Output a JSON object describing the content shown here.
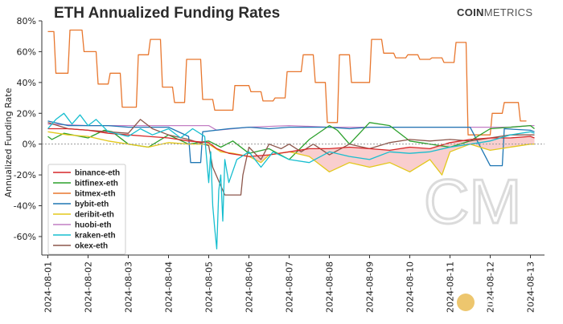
{
  "header": {
    "title": "ETH Annualized Funding Rates",
    "brand_bold": "COIN",
    "brand_light": "METRICS"
  },
  "watermark": {
    "monogram": "CM",
    "text": "金色财经"
  },
  "chart_data": {
    "type": "line",
    "title": "ETH Annualized Funding Rates",
    "ylabel": "Annualized Funding Rate",
    "xlabel": "",
    "ylim": [
      -0.72,
      0.8
    ],
    "yticks": [
      0.8,
      0.6,
      0.4,
      0.2,
      0.0,
      -0.2,
      -0.4,
      -0.6
    ],
    "ytick_labels": [
      "80%",
      "60%",
      "40%",
      "20%",
      "0%",
      "-20%",
      "-40%",
      "-60%"
    ],
    "xlim": [
      -0.15,
      12.35
    ],
    "x_tick_labels": [
      "2024-08-01",
      "2024-08-02",
      "2024-08-03",
      "2024-08-04",
      "2024-08-05",
      "2024-08-06",
      "2024-08-07",
      "2024-08-08",
      "2024-08-09",
      "2024-08-10",
      "2024-08-11",
      "2024-08-12",
      "2024-08-13"
    ],
    "grid": false,
    "legend_position": "bottom-left",
    "zero_line": "dashed",
    "series": [
      {
        "name": "binance-eth",
        "color": "#d62728",
        "points": [
          [
            0,
            0.1
          ],
          [
            0.5,
            0.1
          ],
          [
            1,
            0.09
          ],
          [
            1.5,
            0.07
          ],
          [
            2,
            0.06
          ],
          [
            2.5,
            0.05
          ],
          [
            3,
            0.04
          ],
          [
            3.5,
            0.02
          ],
          [
            4,
            0.01
          ],
          [
            4.2,
            -0.03
          ],
          [
            4.5,
            -0.06
          ],
          [
            5,
            -0.08
          ],
          [
            5.5,
            -0.07
          ],
          [
            6,
            -0.05
          ],
          [
            6.5,
            -0.03
          ],
          [
            7,
            -0.03
          ],
          [
            7.5,
            -0.02
          ],
          [
            8,
            -0.03
          ],
          [
            8.5,
            -0.04
          ],
          [
            9,
            -0.02
          ],
          [
            9.5,
            -0.03
          ],
          [
            10,
            0.01
          ],
          [
            10.5,
            0.03
          ],
          [
            11,
            0.04
          ],
          [
            11.5,
            0.04
          ],
          [
            12,
            0.05
          ],
          [
            12.1,
            0.04
          ]
        ]
      },
      {
        "name": "bitfinex-eth",
        "color": "#2ca02c",
        "points": [
          [
            0,
            0.05
          ],
          [
            0.1,
            0.03
          ],
          [
            0.4,
            0.07
          ],
          [
            1,
            0.04
          ],
          [
            1.4,
            0.09
          ],
          [
            1.6,
            0.08
          ],
          [
            2,
            0.0
          ],
          [
            2.5,
            -0.02
          ],
          [
            3,
            0.06
          ],
          [
            3.5,
            0.0
          ],
          [
            4,
            0.02
          ],
          [
            4.3,
            -0.02
          ],
          [
            4.6,
            0.02
          ],
          [
            5,
            -0.06
          ],
          [
            5.5,
            -0.03
          ],
          [
            6,
            -0.1
          ],
          [
            6.5,
            0.03
          ],
          [
            7,
            0.12
          ],
          [
            7.2,
            0.09
          ],
          [
            7.5,
            0.0
          ],
          [
            8,
            0.14
          ],
          [
            8.5,
            0.12
          ],
          [
            9,
            0.02
          ],
          [
            9.5,
            0.0
          ],
          [
            10,
            -0.02
          ],
          [
            10.5,
            0.02
          ],
          [
            11,
            0.1
          ],
          [
            11.5,
            0.11
          ],
          [
            12,
            0.12
          ],
          [
            12.1,
            0.1
          ]
        ]
      },
      {
        "name": "bitmex-eth",
        "color": "#e8772e",
        "points": [
          [
            0,
            0.73
          ],
          [
            0.15,
            0.73
          ],
          [
            0.2,
            0.46
          ],
          [
            0.5,
            0.46
          ],
          [
            0.55,
            0.74
          ],
          [
            0.85,
            0.74
          ],
          [
            0.9,
            0.6
          ],
          [
            1.2,
            0.6
          ],
          [
            1.25,
            0.39
          ],
          [
            1.5,
            0.39
          ],
          [
            1.55,
            0.46
          ],
          [
            1.8,
            0.46
          ],
          [
            1.85,
            0.24
          ],
          [
            2.2,
            0.24
          ],
          [
            2.25,
            0.58
          ],
          [
            2.5,
            0.58
          ],
          [
            2.55,
            0.68
          ],
          [
            2.8,
            0.68
          ],
          [
            2.85,
            0.37
          ],
          [
            3.1,
            0.37
          ],
          [
            3.15,
            0.27
          ],
          [
            3.4,
            0.27
          ],
          [
            3.45,
            0.55
          ],
          [
            3.8,
            0.55
          ],
          [
            3.85,
            0.29
          ],
          [
            4.1,
            0.29
          ],
          [
            4.15,
            0.22
          ],
          [
            4.6,
            0.22
          ],
          [
            4.65,
            0.38
          ],
          [
            5.0,
            0.38
          ],
          [
            5.05,
            0.34
          ],
          [
            5.3,
            0.34
          ],
          [
            5.35,
            0.28
          ],
          [
            5.6,
            0.28
          ],
          [
            5.65,
            0.3
          ],
          [
            5.9,
            0.3
          ],
          [
            5.95,
            0.47
          ],
          [
            6.3,
            0.47
          ],
          [
            6.35,
            0.58
          ],
          [
            6.6,
            0.58
          ],
          [
            6.65,
            0.4
          ],
          [
            6.9,
            0.4
          ],
          [
            6.95,
            0.14
          ],
          [
            7.2,
            0.14
          ],
          [
            7.25,
            0.58
          ],
          [
            7.5,
            0.58
          ],
          [
            7.55,
            0.4
          ],
          [
            8.0,
            0.4
          ],
          [
            8.05,
            0.68
          ],
          [
            8.3,
            0.68
          ],
          [
            8.35,
            0.59
          ],
          [
            8.6,
            0.59
          ],
          [
            8.65,
            0.56
          ],
          [
            8.9,
            0.56
          ],
          [
            8.95,
            0.58
          ],
          [
            9.2,
            0.58
          ],
          [
            9.25,
            0.55
          ],
          [
            9.5,
            0.55
          ],
          [
            9.55,
            0.56
          ],
          [
            9.8,
            0.56
          ],
          [
            9.85,
            0.53
          ],
          [
            10.1,
            0.53
          ],
          [
            10.15,
            0.66
          ],
          [
            10.4,
            0.66
          ],
          [
            10.45,
            0.06
          ],
          [
            11.0,
            0.06
          ],
          [
            11.05,
            0.2
          ],
          [
            11.3,
            0.2
          ],
          [
            11.35,
            0.27
          ],
          [
            11.7,
            0.27
          ],
          [
            11.75,
            0.15
          ],
          [
            11.9,
            0.15
          ]
        ]
      },
      {
        "name": "bybit-eth",
        "color": "#1f77b4",
        "points": [
          [
            0,
            0.15
          ],
          [
            0.5,
            0.12
          ],
          [
            1,
            0.12
          ],
          [
            1.5,
            0.12
          ],
          [
            2,
            0.11
          ],
          [
            2.5,
            0.11
          ],
          [
            3,
            0.11
          ],
          [
            3.5,
            0.05
          ],
          [
            3.55,
            -0.12
          ],
          [
            3.8,
            -0.12
          ],
          [
            3.85,
            0.08
          ],
          [
            4.5,
            0.1
          ],
          [
            5,
            0.11
          ],
          [
            5.5,
            0.1
          ],
          [
            6,
            0.11
          ],
          [
            6.5,
            0.11
          ],
          [
            7,
            0.11
          ],
          [
            7.5,
            0.1
          ],
          [
            8,
            0.11
          ],
          [
            8.5,
            0.11
          ],
          [
            9,
            0.11
          ],
          [
            9.5,
            0.11
          ],
          [
            10,
            0.11
          ],
          [
            10.5,
            0.11
          ],
          [
            11,
            -0.14
          ],
          [
            11.3,
            -0.14
          ],
          [
            11.35,
            0.1
          ],
          [
            12,
            0.09
          ],
          [
            12.1,
            0.08
          ]
        ]
      },
      {
        "name": "deribit-eth",
        "color": "#e3c81c",
        "points": [
          [
            0,
            0.08
          ],
          [
            0.5,
            0.06
          ],
          [
            1,
            0.05
          ],
          [
            1.5,
            0.02
          ],
          [
            2,
            0.0
          ],
          [
            2.5,
            -0.02
          ],
          [
            3,
            0.01
          ],
          [
            3.5,
            0.0
          ],
          [
            4,
            0.0
          ],
          [
            4.3,
            -0.05
          ],
          [
            4.6,
            -0.06
          ],
          [
            5,
            -0.08
          ],
          [
            5.3,
            -0.12
          ],
          [
            5.5,
            -0.07
          ],
          [
            6,
            -0.05
          ],
          [
            6.5,
            -0.08
          ],
          [
            7,
            -0.18
          ],
          [
            7.5,
            -0.12
          ],
          [
            8,
            -0.15
          ],
          [
            8.5,
            -0.12
          ],
          [
            9,
            -0.18
          ],
          [
            9.5,
            -0.1
          ],
          [
            9.8,
            -0.2
          ],
          [
            10,
            -0.05
          ],
          [
            10.5,
            0.0
          ],
          [
            11,
            -0.04
          ],
          [
            11.5,
            -0.02
          ],
          [
            12,
            0.0
          ],
          [
            12.1,
            0.0
          ]
        ]
      },
      {
        "name": "huobi-eth",
        "color": "#c27ec4",
        "points": [
          [
            0,
            0.13
          ],
          [
            1,
            0.12
          ],
          [
            2,
            0.12
          ],
          [
            3,
            0.12
          ],
          [
            4,
            0.12
          ],
          [
            4.2,
            0.09
          ],
          [
            5,
            0.11
          ],
          [
            6,
            0.12
          ],
          [
            7,
            0.11
          ],
          [
            8,
            0.11
          ],
          [
            9,
            0.11
          ],
          [
            10,
            0.11
          ],
          [
            11,
            0.11
          ],
          [
            11.5,
            0.11
          ],
          [
            12,
            0.12
          ],
          [
            12.1,
            0.12
          ]
        ]
      },
      {
        "name": "kraken-eth",
        "color": "#17becf",
        "points": [
          [
            0,
            0.1
          ],
          [
            0.2,
            0.16
          ],
          [
            0.4,
            0.2
          ],
          [
            0.6,
            0.13
          ],
          [
            0.8,
            0.19
          ],
          [
            1,
            0.12
          ],
          [
            1.2,
            0.16
          ],
          [
            1.5,
            0.08
          ],
          [
            2,
            0.05
          ],
          [
            2.3,
            0.1
          ],
          [
            2.6,
            0.06
          ],
          [
            3,
            0.1
          ],
          [
            3.3,
            0.04
          ],
          [
            3.6,
            0.1
          ],
          [
            3.9,
            0.05
          ],
          [
            4.0,
            -0.25
          ],
          [
            4.05,
            -0.05
          ],
          [
            4.1,
            -0.4
          ],
          [
            4.15,
            -0.55
          ],
          [
            4.2,
            -0.68
          ],
          [
            4.25,
            -0.3
          ],
          [
            4.3,
            -0.2
          ],
          [
            4.35,
            -0.5
          ],
          [
            4.4,
            -0.1
          ],
          [
            4.5,
            -0.25
          ],
          [
            4.7,
            -0.1
          ],
          [
            5,
            -0.05
          ],
          [
            5.3,
            -0.15
          ],
          [
            5.6,
            -0.05
          ],
          [
            6,
            -0.1
          ],
          [
            6.5,
            -0.12
          ],
          [
            7,
            -0.05
          ],
          [
            7.5,
            -0.08
          ],
          [
            8,
            -0.1
          ],
          [
            8.5,
            -0.05
          ],
          [
            9,
            -0.06
          ],
          [
            9.5,
            -0.05
          ],
          [
            10,
            -0.02
          ],
          [
            10.5,
            0.0
          ],
          [
            11,
            0.02
          ],
          [
            11.5,
            0.06
          ],
          [
            12,
            0.08
          ],
          [
            12.1,
            0.07
          ]
        ]
      },
      {
        "name": "okex-eth",
        "color": "#8c564b",
        "points": [
          [
            0,
            0.14
          ],
          [
            0.5,
            0.1
          ],
          [
            1,
            0.09
          ],
          [
            1.5,
            0.08
          ],
          [
            2,
            0.07
          ],
          [
            2.3,
            0.16
          ],
          [
            2.6,
            0.1
          ],
          [
            3,
            0.06
          ],
          [
            3.5,
            0.03
          ],
          [
            4,
            -0.01
          ],
          [
            4.1,
            -0.15
          ],
          [
            4.4,
            -0.33
          ],
          [
            4.8,
            -0.33
          ],
          [
            4.85,
            -0.2
          ],
          [
            5,
            -0.02
          ],
          [
            5.3,
            -0.1
          ],
          [
            5.5,
            0.0
          ],
          [
            5.8,
            -0.03
          ],
          [
            6,
            0.0
          ],
          [
            6.3,
            -0.05
          ],
          [
            6.6,
            0.0
          ],
          [
            7,
            -0.07
          ],
          [
            7.5,
            0.0
          ],
          [
            8,
            -0.03
          ],
          [
            8.5,
            0.01
          ],
          [
            9,
            0.03
          ],
          [
            9.5,
            0.02
          ],
          [
            10,
            0.03
          ],
          [
            10.5,
            0.02
          ],
          [
            11,
            0.04
          ],
          [
            11.5,
            0.06
          ],
          [
            12,
            0.06
          ],
          [
            12.1,
            0.06
          ]
        ]
      }
    ]
  }
}
